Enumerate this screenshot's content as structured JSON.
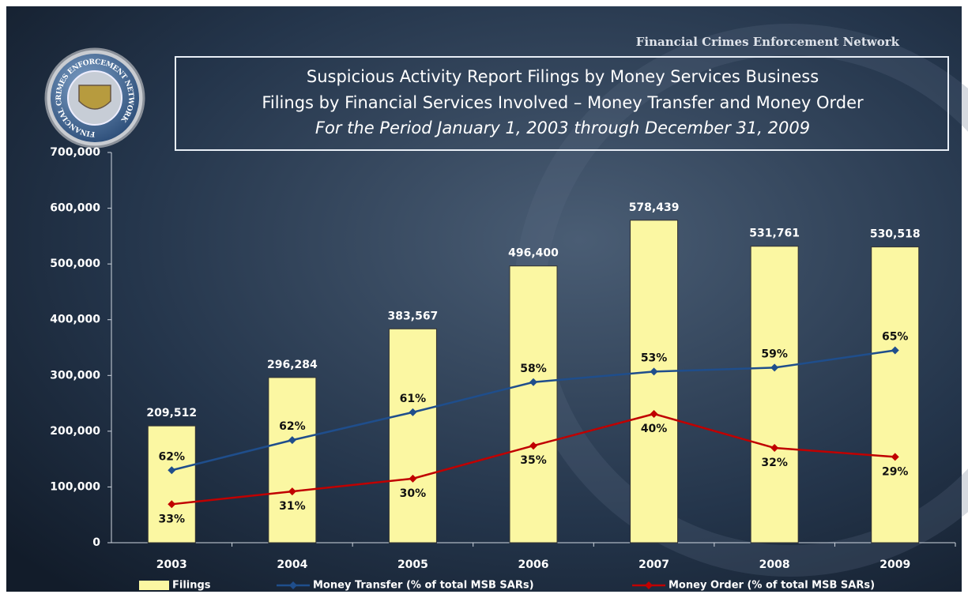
{
  "network_name": "Financial Crimes Enforcement Network",
  "seal_text": "FINANCIAL CRIMES ENFORCEMENT NETWORK",
  "chart_data": {
    "type": "bar",
    "title": "Suspicious Activity Report Filings by Money Services Business",
    "subtitle": "Filings by Financial Services Involved – Money Transfer and Money Order",
    "period": "For the Period January 1, 2003 through December 31, 2009",
    "categories": [
      "2003",
      "2004",
      "2005",
      "2006",
      "2007",
      "2008",
      "2009"
    ],
    "series": [
      {
        "name": "Filings",
        "type": "bar",
        "color": "#fbf7a2",
        "values": [
          209512,
          296284,
          383567,
          496400,
          578439,
          531761,
          530518
        ],
        "value_labels": [
          "209,512",
          "296,284",
          "383,567",
          "496,400",
          "578,439",
          "531,761",
          "530,518"
        ]
      },
      {
        "name": "Money Transfer (% of total MSB SARs)",
        "type": "line",
        "color": "#1f4e8c",
        "values": [
          130000,
          184000,
          234000,
          288000,
          307000,
          314000,
          345000
        ],
        "value_labels": [
          "62%",
          "62%",
          "61%",
          "58%",
          "53%",
          "59%",
          "65%"
        ]
      },
      {
        "name": "Money Order (% of total MSB SARs)",
        "type": "line",
        "color": "#c00000",
        "values": [
          69000,
          92000,
          115000,
          174000,
          231000,
          170000,
          154000
        ],
        "value_labels": [
          "33%",
          "31%",
          "30%",
          "35%",
          "40%",
          "32%",
          "29%"
        ]
      }
    ],
    "ylim": [
      0,
      700000
    ],
    "yticks": [
      0,
      {
        "value": 100000,
        "label": "100,000"
      },
      {
        "value": 200000,
        "label": "200,000"
      },
      {
        "value": 300000,
        "label": "300,000"
      },
      {
        "value": 400000,
        "label": "400,000"
      },
      {
        "value": 500000,
        "label": "500,000"
      },
      {
        "value": 600000,
        "label": "600,000"
      },
      {
        "value": 700000,
        "label": "700,000"
      }
    ],
    "grid": false,
    "legend": "bottom"
  }
}
